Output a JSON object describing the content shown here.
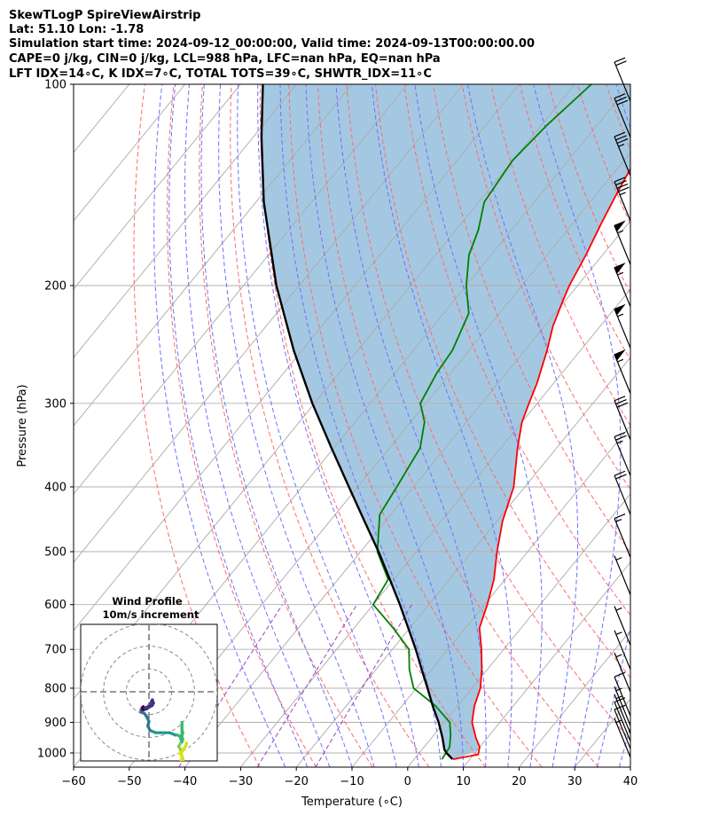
{
  "header": {
    "lines": [
      "SkewTLogP SpireViewAirstrip",
      "Lat: 51.10   Lon: -1.78",
      "Simulation start time: 2024-09-12_00:00:00, Valid time: 2024-09-13T00:00:00.00",
      "CAPE=0 j/kg, CIN=0 j/kg, LCL=988 hPa, LFC=nan hPa, EQ=nan hPa",
      "LFT IDX=14∘C, K IDX=7∘C, TOTAL TOTS=39∘C, SHWTR_IDX=11∘C"
    ]
  },
  "chart_data": {
    "type": "line",
    "subtype": "skew-t log-p diagram",
    "xlabel": "Temperature (∘C)",
    "ylabel": "Pressure (hPa)",
    "xlim": [
      -60,
      40
    ],
    "ylim": [
      1050,
      100
    ],
    "yscale": "log",
    "x_ticks": [
      -60,
      -50,
      -40,
      -30,
      -20,
      -10,
      0,
      10,
      20,
      30,
      40
    ],
    "x_tick_labels": [
      "−60",
      "−50",
      "−40",
      "−30",
      "−20",
      "−10",
      "0",
      "10",
      "20",
      "30",
      "40"
    ],
    "y_ticks": [
      1000,
      900,
      800,
      700,
      600,
      500,
      400,
      300,
      200,
      100
    ],
    "y_tick_labels": [
      "1000",
      "900",
      "800",
      "700",
      "600",
      "500",
      "400",
      "300",
      "200",
      "100"
    ],
    "grid": true,
    "colors": {
      "temperature": "#ff0000",
      "dewpoint": "#008000",
      "parcel": "#000000",
      "shade": "#a0c5e0",
      "dry_adiabats": "#ff6a6a",
      "moist_adiabats": "#6f6fff",
      "mixing_ratio": "#a040c0",
      "isotherms": "#aaaaaa"
    },
    "series": [
      {
        "role": "temperature",
        "pressure": [
          1022,
          1005,
          980,
          950,
          900,
          850,
          800,
          750,
          700,
          650,
          600,
          550,
          500,
          450,
          400,
          350,
          320,
          300,
          280,
          250,
          230,
          210,
          200,
          180,
          160,
          145,
          130,
          120,
          108,
          100
        ],
        "temperature": [
          7.0,
          10.8,
          10.0,
          8.0,
          5.0,
          3.0,
          1.5,
          -1.0,
          -4.0,
          -7.5,
          -9.5,
          -12.0,
          -15.5,
          -19.0,
          -22.0,
          -27.0,
          -30.0,
          -31.5,
          -33.0,
          -36.0,
          -38.5,
          -40.5,
          -41.5,
          -43.0,
          -45.0,
          -46.5,
          -48.0,
          -49.0,
          -49.0,
          -49.5
        ]
      },
      {
        "role": "dewpoint",
        "pressure": [
          1022,
          980,
          940,
          900,
          850,
          800,
          750,
          700,
          650,
          600,
          550,
          500,
          440,
          400,
          350,
          320,
          300,
          270,
          250,
          220,
          200,
          180,
          165,
          150,
          130,
          115,
          100
        ],
        "temperature": [
          5.0,
          4.6,
          3.0,
          1.0,
          -4.0,
          -10.5,
          -14.0,
          -17.0,
          -23.0,
          -30.0,
          -31.0,
          -37.0,
          -42.0,
          -43.0,
          -44.5,
          -47.5,
          -51.0,
          -52.5,
          -53.0,
          -55.5,
          -60.0,
          -64.0,
          -66.0,
          -69.0,
          -70.0,
          -69.0,
          -67.0
        ]
      },
      {
        "role": "parcel",
        "pressure": [
          1022,
          1000,
          988,
          950,
          900,
          850,
          800,
          750,
          700,
          650,
          600,
          550,
          500,
          450,
          400,
          350,
          300,
          250,
          200,
          150,
          120,
          100
        ],
        "temperature": [
          6.9,
          4.9,
          4.0,
          2.0,
          -1.0,
          -4.5,
          -8.0,
          -11.8,
          -15.8,
          -20.3,
          -25.2,
          -30.7,
          -36.8,
          -43.8,
          -51.6,
          -60.4,
          -70.4,
          -81.5,
          -94.1,
          -108.6,
          -118.5,
          -126.0
        ]
      }
    ],
    "wind_barbs": [
      {
        "pressure": 1015,
        "speed_kt": 5
      },
      {
        "pressure": 985,
        "speed_kt": 10
      },
      {
        "pressure": 960,
        "speed_kt": 10
      },
      {
        "pressure": 935,
        "speed_kt": 5
      },
      {
        "pressure": 910,
        "speed_kt": 5
      },
      {
        "pressure": 880,
        "speed_kt": 10
      },
      {
        "pressure": 810,
        "speed_kt": 5
      },
      {
        "pressure": 750,
        "speed_kt": 5
      },
      {
        "pressure": 690,
        "speed_kt": 5
      },
      {
        "pressure": 580,
        "speed_kt": 5
      },
      {
        "pressure": 510,
        "speed_kt": 15
      },
      {
        "pressure": 440,
        "speed_kt": 20
      },
      {
        "pressure": 385,
        "speed_kt": 25
      },
      {
        "pressure": 340,
        "speed_kt": 30
      },
      {
        "pressure": 290,
        "speed_kt": 55
      },
      {
        "pressure": 248,
        "speed_kt": 55
      },
      {
        "pressure": 215,
        "speed_kt": 55
      },
      {
        "pressure": 186,
        "speed_kt": 55
      },
      {
        "pressure": 160,
        "speed_kt": 45
      },
      {
        "pressure": 137,
        "speed_kt": 35
      },
      {
        "pressure": 120,
        "speed_kt": 30
      },
      {
        "pressure": 106,
        "speed_kt": 20
      }
    ],
    "hodograph": {
      "title": "Wind Profile",
      "subtitle": "10m/s increment",
      "rings": [
        10,
        20,
        30
      ],
      "range": [
        -30,
        30
      ],
      "path_u": [
        14,
        14.5,
        13.5,
        14,
        13,
        14,
        15,
        14.5,
        15,
        14.5,
        14.5,
        14.5,
        14.5,
        13.5,
        12.5,
        11.5,
        10.5,
        9,
        7,
        5,
        3,
        0.5,
        -0.5,
        0,
        -1,
        -2,
        -3.5,
        -3.5,
        -2.5,
        -2,
        -1.5,
        -0.5,
        0.5,
        1,
        1.5,
        2,
        1.5,
        0.5,
        -1,
        -2.5,
        -3,
        -2.5
      ],
      "path_v": [
        -30,
        -28.5,
        -27,
        -25.5,
        -24,
        -22.5,
        -21,
        -19.5,
        -18,
        -16.5,
        -15,
        -13.5,
        -22,
        -19.5,
        -19,
        -19,
        -18.5,
        -18,
        -18,
        -18,
        -18,
        -17,
        -15,
        -13,
        -11,
        -9.5,
        -9,
        -8,
        -7.5,
        -7,
        -7,
        -6.5,
        -5.5,
        -4.5,
        -3.5,
        -5,
        -6,
        -6.5,
        -7.5,
        -8,
        -7,
        -6.5
      ]
    }
  }
}
